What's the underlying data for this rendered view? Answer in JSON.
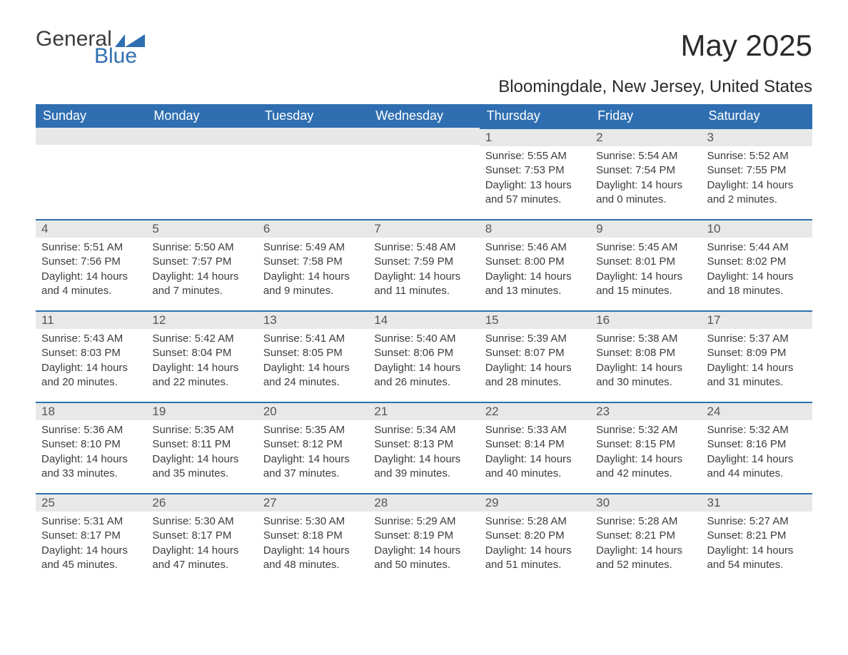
{
  "brand": {
    "word1": "General",
    "word2": "Blue",
    "accent_color": "#2f6fb1"
  },
  "title": "May 2025",
  "location": "Bloomingdale, New Jersey, United States",
  "colors": {
    "header_bg": "#2f6fb1",
    "header_text": "#ffffff",
    "daynum_bg": "#e8e8e8",
    "daynum_text": "#555555",
    "body_text": "#3c3c3c",
    "cell_border": "#2f6fb1",
    "page_bg": "#ffffff"
  },
  "weekdays": [
    "Sunday",
    "Monday",
    "Tuesday",
    "Wednesday",
    "Thursday",
    "Friday",
    "Saturday"
  ],
  "grid": [
    [
      null,
      null,
      null,
      null,
      {
        "n": "1",
        "sr": "5:55 AM",
        "ss": "7:53 PM",
        "dl": "13 hours and 57 minutes."
      },
      {
        "n": "2",
        "sr": "5:54 AM",
        "ss": "7:54 PM",
        "dl": "14 hours and 0 minutes."
      },
      {
        "n": "3",
        "sr": "5:52 AM",
        "ss": "7:55 PM",
        "dl": "14 hours and 2 minutes."
      }
    ],
    [
      {
        "n": "4",
        "sr": "5:51 AM",
        "ss": "7:56 PM",
        "dl": "14 hours and 4 minutes."
      },
      {
        "n": "5",
        "sr": "5:50 AM",
        "ss": "7:57 PM",
        "dl": "14 hours and 7 minutes."
      },
      {
        "n": "6",
        "sr": "5:49 AM",
        "ss": "7:58 PM",
        "dl": "14 hours and 9 minutes."
      },
      {
        "n": "7",
        "sr": "5:48 AM",
        "ss": "7:59 PM",
        "dl": "14 hours and 11 minutes."
      },
      {
        "n": "8",
        "sr": "5:46 AM",
        "ss": "8:00 PM",
        "dl": "14 hours and 13 minutes."
      },
      {
        "n": "9",
        "sr": "5:45 AM",
        "ss": "8:01 PM",
        "dl": "14 hours and 15 minutes."
      },
      {
        "n": "10",
        "sr": "5:44 AM",
        "ss": "8:02 PM",
        "dl": "14 hours and 18 minutes."
      }
    ],
    [
      {
        "n": "11",
        "sr": "5:43 AM",
        "ss": "8:03 PM",
        "dl": "14 hours and 20 minutes."
      },
      {
        "n": "12",
        "sr": "5:42 AM",
        "ss": "8:04 PM",
        "dl": "14 hours and 22 minutes."
      },
      {
        "n": "13",
        "sr": "5:41 AM",
        "ss": "8:05 PM",
        "dl": "14 hours and 24 minutes."
      },
      {
        "n": "14",
        "sr": "5:40 AM",
        "ss": "8:06 PM",
        "dl": "14 hours and 26 minutes."
      },
      {
        "n": "15",
        "sr": "5:39 AM",
        "ss": "8:07 PM",
        "dl": "14 hours and 28 minutes."
      },
      {
        "n": "16",
        "sr": "5:38 AM",
        "ss": "8:08 PM",
        "dl": "14 hours and 30 minutes."
      },
      {
        "n": "17",
        "sr": "5:37 AM",
        "ss": "8:09 PM",
        "dl": "14 hours and 31 minutes."
      }
    ],
    [
      {
        "n": "18",
        "sr": "5:36 AM",
        "ss": "8:10 PM",
        "dl": "14 hours and 33 minutes."
      },
      {
        "n": "19",
        "sr": "5:35 AM",
        "ss": "8:11 PM",
        "dl": "14 hours and 35 minutes."
      },
      {
        "n": "20",
        "sr": "5:35 AM",
        "ss": "8:12 PM",
        "dl": "14 hours and 37 minutes."
      },
      {
        "n": "21",
        "sr": "5:34 AM",
        "ss": "8:13 PM",
        "dl": "14 hours and 39 minutes."
      },
      {
        "n": "22",
        "sr": "5:33 AM",
        "ss": "8:14 PM",
        "dl": "14 hours and 40 minutes."
      },
      {
        "n": "23",
        "sr": "5:32 AM",
        "ss": "8:15 PM",
        "dl": "14 hours and 42 minutes."
      },
      {
        "n": "24",
        "sr": "5:32 AM",
        "ss": "8:16 PM",
        "dl": "14 hours and 44 minutes."
      }
    ],
    [
      {
        "n": "25",
        "sr": "5:31 AM",
        "ss": "8:17 PM",
        "dl": "14 hours and 45 minutes."
      },
      {
        "n": "26",
        "sr": "5:30 AM",
        "ss": "8:17 PM",
        "dl": "14 hours and 47 minutes."
      },
      {
        "n": "27",
        "sr": "5:30 AM",
        "ss": "8:18 PM",
        "dl": "14 hours and 48 minutes."
      },
      {
        "n": "28",
        "sr": "5:29 AM",
        "ss": "8:19 PM",
        "dl": "14 hours and 50 minutes."
      },
      {
        "n": "29",
        "sr": "5:28 AM",
        "ss": "8:20 PM",
        "dl": "14 hours and 51 minutes."
      },
      {
        "n": "30",
        "sr": "5:28 AM",
        "ss": "8:21 PM",
        "dl": "14 hours and 52 minutes."
      },
      {
        "n": "31",
        "sr": "5:27 AM",
        "ss": "8:21 PM",
        "dl": "14 hours and 54 minutes."
      }
    ]
  ],
  "labels": {
    "sunrise": "Sunrise: ",
    "sunset": "Sunset: ",
    "daylight": "Daylight: "
  }
}
